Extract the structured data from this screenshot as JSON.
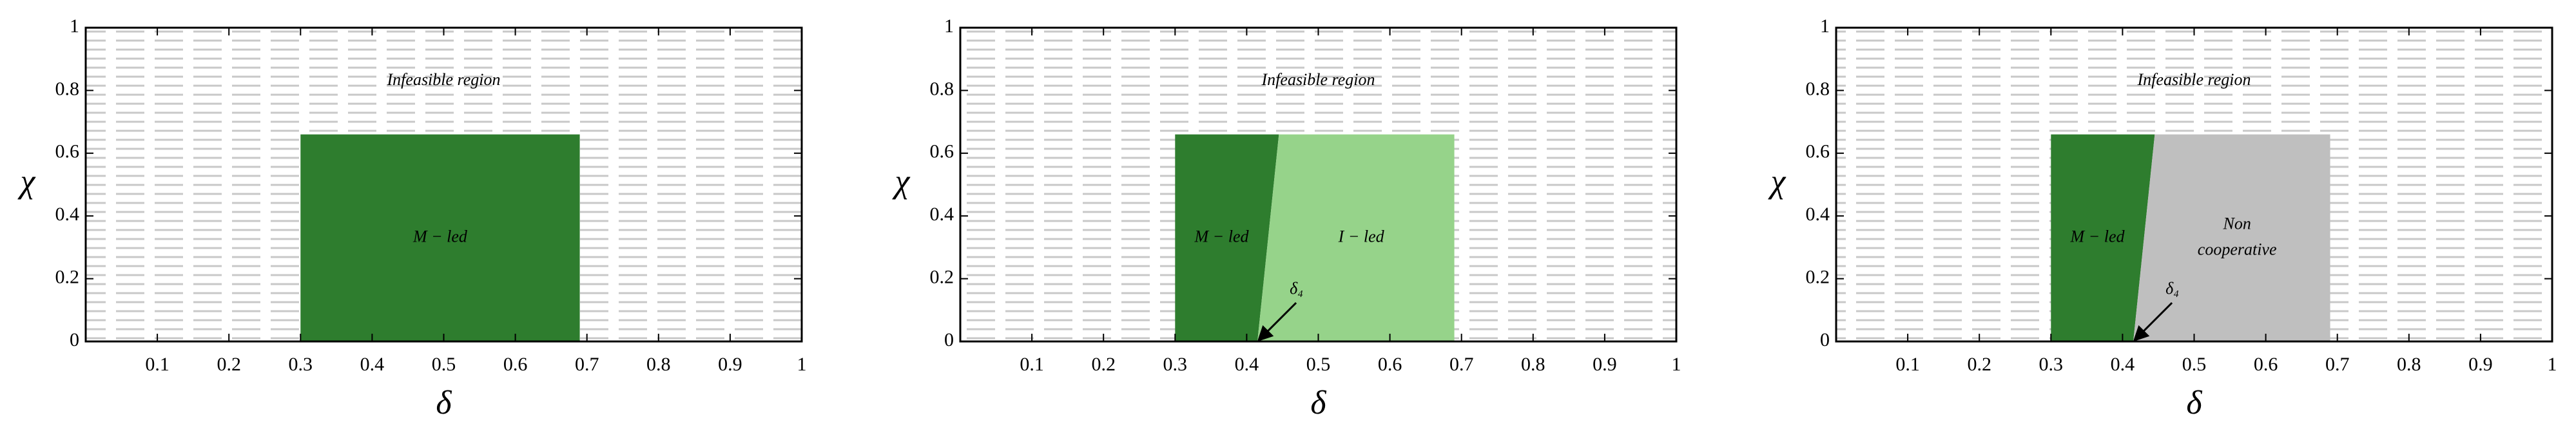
{
  "chart_data": [
    {
      "type": "region",
      "xlabel": "δ",
      "ylabel": "χ",
      "xlim": [
        0,
        1
      ],
      "ylim": [
        0,
        1
      ],
      "xticks": [
        0.1,
        0.2,
        0.3,
        0.4,
        0.5,
        0.6,
        0.7,
        0.8,
        0.9,
        1
      ],
      "yticks": [
        0,
        0.2,
        0.4,
        0.6,
        0.8,
        1
      ],
      "background_label": "Infeasible region",
      "regions": [
        {
          "name": [
            "M − led"
          ],
          "color": "#2e7d2e",
          "x": [
            0.3,
            0.69,
            0.69,
            0.3
          ],
          "y": [
            0,
            0,
            0.66,
            0.66
          ]
        }
      ]
    },
    {
      "type": "region",
      "xlabel": "δ",
      "ylabel": "χ",
      "xlim": [
        0,
        1
      ],
      "ylim": [
        0,
        1
      ],
      "xticks": [
        0.1,
        0.2,
        0.3,
        0.4,
        0.5,
        0.6,
        0.7,
        0.8,
        0.9,
        1
      ],
      "yticks": [
        0,
        0.2,
        0.4,
        0.6,
        0.8,
        1
      ],
      "background_label": "Infeasible region",
      "regions": [
        {
          "name": [
            "M − led"
          ],
          "color": "#2e7d2e",
          "x": [
            0.3,
            0.415,
            0.445,
            0.3
          ],
          "y": [
            0,
            0,
            0.66,
            0.66
          ]
        },
        {
          "name": [
            "I − led"
          ],
          "color": "#96d38a",
          "x": [
            0.415,
            0.69,
            0.69,
            0.445
          ],
          "y": [
            0,
            0,
            0.66,
            0.66
          ]
        }
      ],
      "arrow": {
        "text": "δ₄",
        "x": 0.415,
        "y": 0
      }
    },
    {
      "type": "region",
      "xlabel": "δ",
      "ylabel": "χ",
      "xlim": [
        0,
        1
      ],
      "ylim": [
        0,
        1
      ],
      "xticks": [
        0.1,
        0.2,
        0.3,
        0.4,
        0.5,
        0.6,
        0.7,
        0.8,
        0.9,
        1
      ],
      "yticks": [
        0,
        0.2,
        0.4,
        0.6,
        0.8,
        1
      ],
      "background_label": "Infeasible region",
      "regions": [
        {
          "name": [
            "M − led"
          ],
          "color": "#2e7d2e",
          "x": [
            0.3,
            0.415,
            0.445,
            0.3
          ],
          "y": [
            0,
            0,
            0.66,
            0.66
          ]
        },
        {
          "name": [
            "Non",
            "cooperative"
          ],
          "color": "#bfbfbf",
          "x": [
            0.415,
            0.69,
            0.69,
            0.445
          ],
          "y": [
            0,
            0,
            0.66,
            0.66
          ]
        }
      ],
      "arrow": {
        "text": "δ₄",
        "x": 0.415,
        "y": 0
      }
    }
  ]
}
